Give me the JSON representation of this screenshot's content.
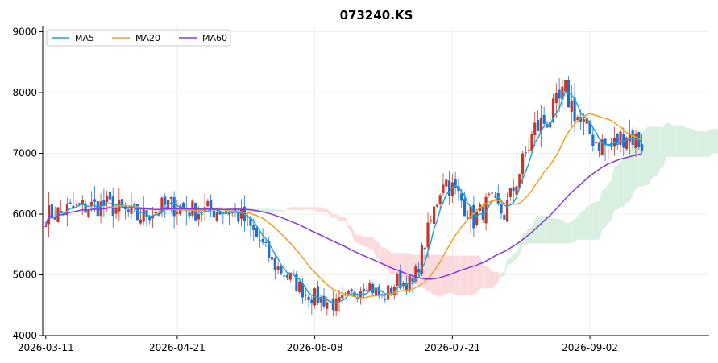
{
  "chart_data": {
    "type": "candlestick",
    "title": "073240.KS",
    "xlabel": "",
    "ylabel": "",
    "ylim": [
      4000,
      9100
    ],
    "y_ticks": [
      4000,
      5000,
      6000,
      7000,
      8000,
      9000
    ],
    "x_ticks": [
      {
        "date": "2026-03-11",
        "label": "2026-03-11"
      },
      {
        "date": "2026-04-21",
        "label": "2026-04-21"
      },
      {
        "date": "2026-06-08",
        "label": "2026-06-08"
      },
      {
        "date": "2026-07-21",
        "label": "2026-07-21"
      },
      {
        "date": "2026-09-02",
        "label": "2026-09-02"
      }
    ],
    "x_range_trading_days": [
      -1,
      217
    ],
    "grid": true,
    "legend_position": "top-left",
    "series": [
      {
        "name": "MA5",
        "color": "#1fa6d9"
      },
      {
        "name": "MA20",
        "color": "#f0a020"
      },
      {
        "name": "MA60",
        "color": "#8038e0"
      }
    ],
    "candle_colors": {
      "up": "#c0392b",
      "down": "#1e6fcf"
    },
    "cloud_colors": {
      "bullish": "#d9efdf",
      "bearish": "#fbdadd"
    },
    "ohlc_close_keypoints": [
      [
        0,
        5980
      ],
      [
        10,
        6100
      ],
      [
        20,
        6150
      ],
      [
        30,
        5950
      ],
      [
        40,
        6150
      ],
      [
        50,
        6050
      ],
      [
        60,
        6080
      ],
      [
        65,
        5900
      ],
      [
        70,
        5550
      ],
      [
        75,
        5150
      ],
      [
        80,
        4950
      ],
      [
        85,
        4700
      ],
      [
        90,
        4600
      ],
      [
        95,
        4500
      ],
      [
        100,
        4650
      ],
      [
        105,
        4900
      ],
      [
        110,
        4600
      ],
      [
        115,
        4900
      ],
      [
        120,
        4850
      ],
      [
        125,
        5700
      ],
      [
        130,
        6600
      ],
      [
        135,
        6300
      ],
      [
        140,
        5900
      ],
      [
        145,
        6200
      ],
      [
        150,
        6000
      ],
      [
        155,
        6700
      ],
      [
        160,
        7400
      ],
      [
        165,
        7600
      ],
      [
        170,
        8000
      ],
      [
        175,
        7500
      ],
      [
        180,
        7200
      ],
      [
        185,
        7100
      ],
      [
        190,
        7350
      ],
      [
        195,
        7150
      ]
    ]
  }
}
